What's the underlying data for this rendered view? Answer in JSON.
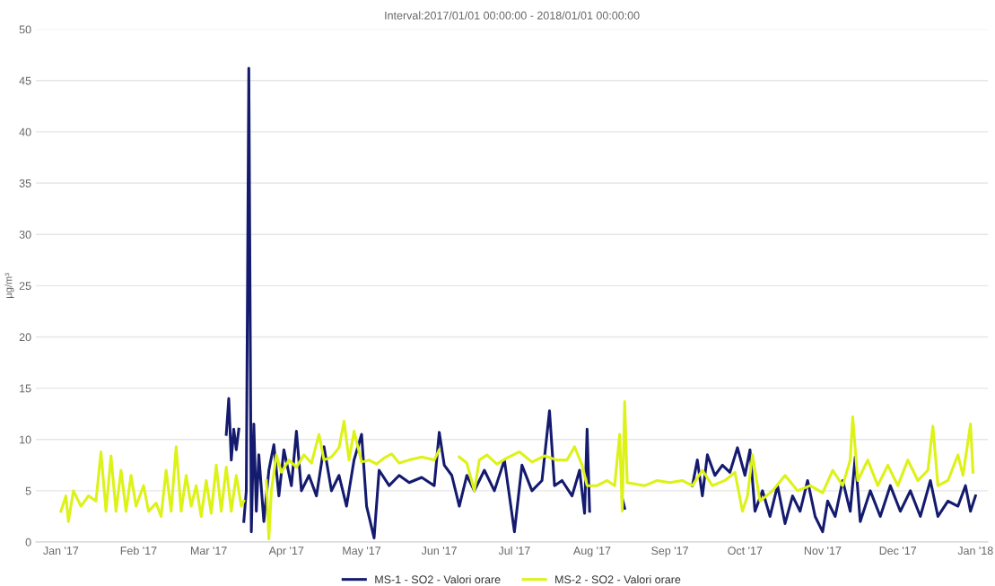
{
  "chart_data": {
    "type": "line",
    "title": "Interval:2017/01/01 00:00:00 - 2018/01/01 00:00:00",
    "ylabel": "µg/m³",
    "xlim": [
      "2016-12-22",
      "2018-01-06"
    ],
    "xticks": [
      {
        "value": "2017-01-01",
        "label": "Jan '17"
      },
      {
        "value": "2017-02-01",
        "label": "Feb '17"
      },
      {
        "value": "2017-03-01",
        "label": "Mar '17"
      },
      {
        "value": "2017-04-01",
        "label": "Apr '17"
      },
      {
        "value": "2017-05-01",
        "label": "May '17"
      },
      {
        "value": "2017-06-01",
        "label": "Jun '17"
      },
      {
        "value": "2017-07-01",
        "label": "Jul '17"
      },
      {
        "value": "2017-08-01",
        "label": "Aug '17"
      },
      {
        "value": "2017-09-01",
        "label": "Sep '17"
      },
      {
        "value": "2017-10-01",
        "label": "Oct '17"
      },
      {
        "value": "2017-11-01",
        "label": "Nov '17"
      },
      {
        "value": "2017-12-01",
        "label": "Dec '17"
      },
      {
        "value": "2018-01-01",
        "label": "Jan '18"
      }
    ],
    "ylim": [
      0,
      50
    ],
    "yticks": [
      0,
      5,
      10,
      15,
      20,
      25,
      30,
      35,
      40,
      45,
      50
    ],
    "grid": "y",
    "legend": "bottom",
    "series": [
      {
        "name": "MS-1 - SO2 - Valori orare",
        "color": "#141a6e",
        "x": [
          "2017-03-08",
          "2017-03-09",
          "2017-03-10",
          "2017-03-11",
          "2017-03-12",
          "2017-03-13",
          "2017-03-14",
          "2017-03-15",
          "2017-03-16",
          "2017-03-17",
          "2017-03-18",
          "2017-03-19",
          "2017-03-20",
          "2017-03-21",
          "2017-03-23",
          "2017-03-25",
          "2017-03-27",
          "2017-03-29",
          "2017-03-31",
          "2017-04-03",
          "2017-04-05",
          "2017-04-07",
          "2017-04-10",
          "2017-04-13",
          "2017-04-16",
          "2017-04-19",
          "2017-04-22",
          "2017-04-25",
          "2017-04-28",
          "2017-05-01",
          "2017-05-03",
          "2017-05-06",
          "2017-05-08",
          "2017-05-12",
          "2017-05-16",
          "2017-05-20",
          "2017-05-25",
          "2017-05-30",
          "2017-06-01",
          "2017-06-03",
          "2017-06-06",
          "2017-06-09",
          "2017-06-12",
          "2017-06-15",
          "2017-06-19",
          "2017-06-23",
          "2017-06-27",
          "2017-07-01",
          "2017-07-04",
          "2017-07-08",
          "2017-07-12",
          "2017-07-15",
          "2017-07-17",
          "2017-07-20",
          "2017-07-24",
          "2017-07-27",
          "2017-07-29",
          "2017-07-30",
          "2017-07-31",
          "2017-08-05",
          "2017-08-13",
          "2017-08-14",
          "2017-08-20",
          "2017-09-10",
          "2017-09-12",
          "2017-09-14",
          "2017-09-16",
          "2017-09-19",
          "2017-09-22",
          "2017-09-25",
          "2017-09-28",
          "2017-10-01",
          "2017-10-03",
          "2017-10-05",
          "2017-10-08",
          "2017-10-11",
          "2017-10-14",
          "2017-10-17",
          "2017-10-20",
          "2017-10-23",
          "2017-10-26",
          "2017-10-29",
          "2017-11-01",
          "2017-11-03",
          "2017-11-06",
          "2017-11-09",
          "2017-11-12",
          "2017-11-14",
          "2017-11-16",
          "2017-11-20",
          "2017-11-24",
          "2017-11-28",
          "2017-12-02",
          "2017-12-06",
          "2017-12-10",
          "2017-12-14",
          "2017-12-17",
          "2017-12-21",
          "2017-12-25",
          "2017-12-28",
          "2017-12-30",
          "2018-01-01"
        ],
        "values": [
          10.5,
          14.0,
          8.0,
          11.0,
          9.0,
          11.0,
          null,
          2.0,
          5.0,
          46.2,
          1.0,
          11.5,
          3.0,
          8.5,
          2.0,
          7.0,
          9.5,
          4.5,
          9.0,
          5.5,
          10.8,
          5.0,
          6.5,
          4.5,
          9.3,
          5.0,
          6.5,
          3.5,
          8.0,
          10.5,
          3.5,
          0.4,
          7.0,
          5.5,
          6.5,
          5.8,
          6.3,
          5.5,
          10.7,
          7.5,
          6.5,
          3.5,
          6.5,
          5.0,
          7.0,
          5.0,
          8.0,
          1.0,
          7.5,
          5.0,
          6.0,
          12.8,
          5.5,
          6.0,
          4.5,
          7.0,
          2.8,
          11.0,
          3.0,
          null,
          4.3,
          3.3,
          null,
          5.5,
          8.0,
          4.5,
          8.5,
          6.5,
          7.5,
          6.8,
          9.2,
          6.5,
          9.0,
          3.0,
          5.0,
          2.5,
          5.5,
          1.8,
          4.5,
          3.0,
          6.0,
          2.5,
          1.0,
          4.0,
          2.5,
          6.0,
          3.0,
          8.3,
          2.0,
          5.0,
          2.5,
          5.5,
          3.0,
          5.0,
          2.5,
          6.0,
          2.5,
          4.0,
          3.5,
          5.5,
          3.0,
          4.5
        ]
      },
      {
        "name": "MS-2 - SO2 - Valori orare",
        "color": "#ddf216",
        "x": [
          "2017-01-01",
          "2017-01-03",
          "2017-01-04",
          "2017-01-06",
          "2017-01-09",
          "2017-01-12",
          "2017-01-15",
          "2017-01-17",
          "2017-01-19",
          "2017-01-21",
          "2017-01-23",
          "2017-01-25",
          "2017-01-27",
          "2017-01-29",
          "2017-01-31",
          "2017-02-03",
          "2017-02-05",
          "2017-02-08",
          "2017-02-10",
          "2017-02-12",
          "2017-02-14",
          "2017-02-16",
          "2017-02-18",
          "2017-02-20",
          "2017-02-22",
          "2017-02-24",
          "2017-02-26",
          "2017-02-28",
          "2017-03-02",
          "2017-03-04",
          "2017-03-06",
          "2017-03-08",
          "2017-03-10",
          "2017-03-12",
          "2017-03-14",
          "2017-03-15",
          "2017-03-19",
          "2017-03-24",
          "2017-03-25",
          "2017-03-26",
          "2017-03-28",
          "2017-03-30",
          "2017-04-02",
          "2017-04-05",
          "2017-04-08",
          "2017-04-11",
          "2017-04-14",
          "2017-04-16",
          "2017-04-19",
          "2017-04-22",
          "2017-04-24",
          "2017-04-26",
          "2017-04-28",
          "2017-05-01",
          "2017-05-04",
          "2017-05-07",
          "2017-05-10",
          "2017-05-13",
          "2017-05-16",
          "2017-05-20",
          "2017-05-25",
          "2017-05-30",
          "2017-06-01",
          "2017-06-04",
          "2017-06-09",
          "2017-06-12",
          "2017-06-15",
          "2017-06-17",
          "2017-06-20",
          "2017-06-24",
          "2017-06-28",
          "2017-07-03",
          "2017-07-08",
          "2017-07-13",
          "2017-07-18",
          "2017-07-22",
          "2017-07-25",
          "2017-07-28",
          "2017-07-30",
          "2017-08-03",
          "2017-08-07",
          "2017-08-10",
          "2017-08-12",
          "2017-08-13",
          "2017-08-14",
          "2017-08-15",
          "2017-08-22",
          "2017-08-27",
          "2017-09-01",
          "2017-09-06",
          "2017-09-10",
          "2017-09-14",
          "2017-09-18",
          "2017-09-23",
          "2017-09-27",
          "2017-09-30",
          "2017-10-02",
          "2017-10-04",
          "2017-10-07",
          "2017-10-12",
          "2017-10-17",
          "2017-10-22",
          "2017-10-27",
          "2017-11-01",
          "2017-11-05",
          "2017-11-09",
          "2017-11-12",
          "2017-11-13",
          "2017-11-15",
          "2017-11-19",
          "2017-11-23",
          "2017-11-27",
          "2017-12-01",
          "2017-12-05",
          "2017-12-09",
          "2017-12-13",
          "2017-12-15",
          "2017-12-17",
          "2017-12-21",
          "2017-12-25",
          "2017-12-27",
          "2017-12-30",
          "2017-12-31"
        ],
        "values": [
          3.0,
          4.5,
          2.0,
          5.0,
          3.5,
          4.5,
          4.0,
          8.8,
          3.0,
          8.4,
          3.0,
          7.0,
          3.0,
          6.5,
          3.5,
          5.5,
          3.0,
          3.8,
          2.5,
          7.0,
          3.0,
          9.3,
          3.0,
          6.5,
          3.5,
          5.5,
          2.5,
          6.0,
          2.8,
          7.5,
          3.0,
          7.3,
          3.0,
          6.5,
          3.5,
          4.0,
          null,
          6.0,
          0.3,
          5.0,
          8.5,
          6.8,
          8.0,
          7.3,
          8.5,
          7.7,
          10.5,
          8.0,
          8.3,
          9.2,
          11.8,
          8.0,
          10.8,
          7.8,
          8.0,
          7.6,
          8.2,
          8.6,
          7.7,
          8.0,
          8.3,
          8.0,
          9.0,
          null,
          8.3,
          7.7,
          5.0,
          8.0,
          8.5,
          7.6,
          8.2,
          8.8,
          7.8,
          8.4,
          8.0,
          8.0,
          9.3,
          7.5,
          5.5,
          5.5,
          6.0,
          5.5,
          10.5,
          3.0,
          13.7,
          5.8,
          5.5,
          6.0,
          5.8,
          6.0,
          5.5,
          7.0,
          5.5,
          6.0,
          6.8,
          3.0,
          4.5,
          8.5,
          4.0,
          5.0,
          6.5,
          5.0,
          5.5,
          4.8,
          7.0,
          5.5,
          8.0,
          12.2,
          6.0,
          8.0,
          5.5,
          7.5,
          5.5,
          8.0,
          6.0,
          7.0,
          11.3,
          5.5,
          6.0,
          8.5,
          6.5,
          11.5,
          6.8
        ]
      }
    ]
  }
}
